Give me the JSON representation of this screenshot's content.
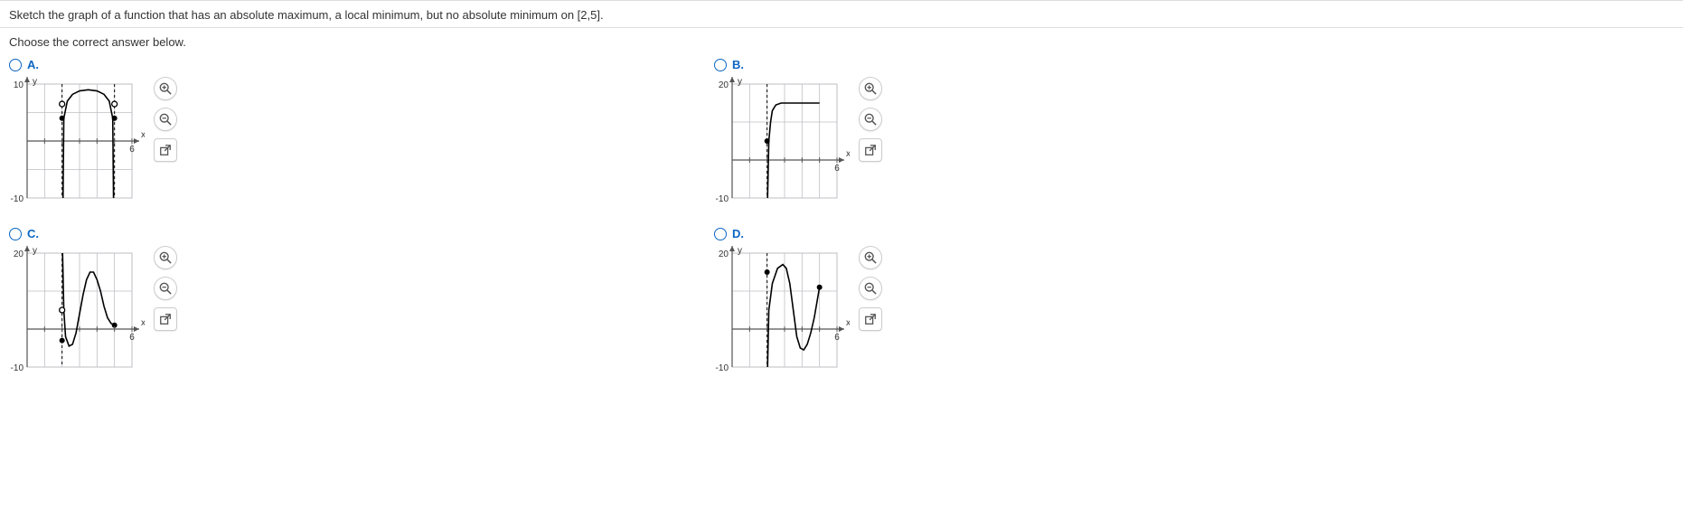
{
  "question_text": "Sketch the graph of a function that has an absolute maximum, a local minimum, but no absolute minimum on [2,5].",
  "prompt": "Choose the correct answer below.",
  "options": {
    "a": {
      "label": "A."
    },
    "b": {
      "label": "B."
    },
    "c": {
      "label": "C."
    },
    "d": {
      "label": "D."
    }
  },
  "axis": {
    "x_label": "x",
    "y_label": "y",
    "x_tick_label": "6"
  },
  "graph_a": {
    "y_top": "10",
    "y_bottom": "-10",
    "x_min": 0,
    "x_max": 6,
    "y_min": -10,
    "y_max": 10,
    "domain_lines_x": [
      2,
      5
    ],
    "curve": [
      [
        2.05,
        -12
      ],
      [
        2.1,
        4
      ],
      [
        2.3,
        7
      ],
      [
        2.6,
        8.2
      ],
      [
        3.0,
        8.8
      ],
      [
        3.5,
        9.0
      ],
      [
        4.0,
        8.8
      ],
      [
        4.4,
        8.2
      ],
      [
        4.7,
        7
      ],
      [
        4.9,
        4
      ],
      [
        4.95,
        -12
      ]
    ],
    "open_points": [
      [
        2,
        6.5
      ],
      [
        5,
        6.5
      ]
    ],
    "closed_points": [
      [
        2,
        4
      ],
      [
        5,
        4
      ]
    ],
    "grid_color": "#bfbfc5",
    "axis_color": "#555",
    "curve_color": "#000"
  },
  "graph_b": {
    "y_top": "20",
    "y_bottom": "-10",
    "x_min": 0,
    "x_max": 6,
    "y_min": -10,
    "y_max": 20,
    "domain_lines_x": [
      2
    ],
    "curve": [
      [
        2.02,
        -12
      ],
      [
        2.1,
        5
      ],
      [
        2.2,
        10
      ],
      [
        2.3,
        13
      ],
      [
        2.5,
        14.5
      ],
      [
        2.8,
        15
      ],
      [
        3.5,
        15
      ],
      [
        5,
        15
      ]
    ],
    "open_points": [],
    "closed_points": [
      [
        2,
        5
      ]
    ],
    "grid_color": "#bfbfc5",
    "axis_color": "#555",
    "curve_color": "#000"
  },
  "graph_c": {
    "y_top": "20",
    "y_bottom": "-10",
    "x_min": 0,
    "x_max": 6,
    "y_min": -10,
    "y_max": 20,
    "domain_lines_x": [
      2
    ],
    "curve": [
      [
        2.02,
        22
      ],
      [
        2.1,
        5
      ],
      [
        2.2,
        -2
      ],
      [
        2.4,
        -4.5
      ],
      [
        2.6,
        -4
      ],
      [
        2.8,
        -1
      ],
      [
        3.0,
        4
      ],
      [
        3.2,
        9
      ],
      [
        3.4,
        13
      ],
      [
        3.6,
        15
      ],
      [
        3.8,
        15
      ],
      [
        4.0,
        13
      ],
      [
        4.2,
        10
      ],
      [
        4.4,
        6
      ],
      [
        4.6,
        3
      ],
      [
        4.8,
        1.5
      ],
      [
        5.0,
        1
      ]
    ],
    "open_points": [
      [
        2,
        5
      ]
    ],
    "closed_points": [
      [
        2,
        -3
      ],
      [
        5,
        1
      ]
    ],
    "grid_color": "#bfbfc5",
    "axis_color": "#555",
    "curve_color": "#000"
  },
  "graph_d": {
    "y_top": "20",
    "y_bottom": "-10",
    "x_min": 0,
    "x_max": 6,
    "y_min": -10,
    "y_max": 20,
    "domain_lines_x": [
      2
    ],
    "curve": [
      [
        2.02,
        -12
      ],
      [
        2.1,
        5
      ],
      [
        2.3,
        12
      ],
      [
        2.6,
        16
      ],
      [
        2.9,
        17
      ],
      [
        3.1,
        16
      ],
      [
        3.3,
        12
      ],
      [
        3.5,
        5
      ],
      [
        3.7,
        -2
      ],
      [
        3.9,
        -5
      ],
      [
        4.1,
        -5.5
      ],
      [
        4.3,
        -4
      ],
      [
        4.5,
        -1
      ],
      [
        4.7,
        3
      ],
      [
        4.85,
        7
      ],
      [
        5.0,
        11
      ]
    ],
    "open_points": [],
    "closed_points": [
      [
        2,
        15
      ],
      [
        5,
        11
      ]
    ],
    "grid_color": "#bfbfc5",
    "axis_color": "#555",
    "curve_color": "#000"
  },
  "icons": {
    "zoom_in": "zoom-in-icon",
    "zoom_out": "zoom-out-icon",
    "popout": "popout-icon"
  }
}
